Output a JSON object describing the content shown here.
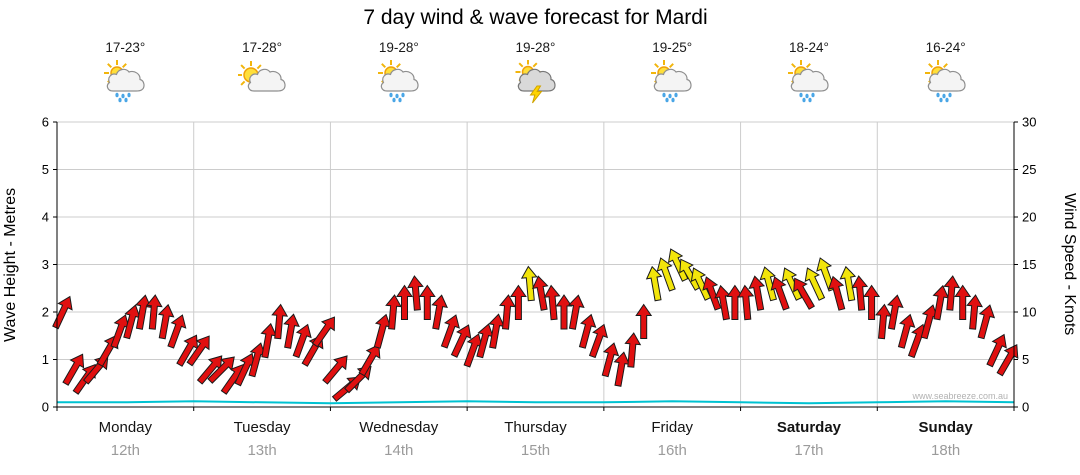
{
  "title": "7 day wind & wave forecast for Mardi",
  "watermark": "www.seabreeze.com.au",
  "days": [
    {
      "name": "Monday",
      "date": "12th",
      "temp": "17-23°",
      "icon": "sun-cloud-rain",
      "bold": false
    },
    {
      "name": "Tuesday",
      "date": "13th",
      "temp": "17-28°",
      "icon": "sun-cloud",
      "bold": false
    },
    {
      "name": "Wednesday",
      "date": "14th",
      "temp": "19-28°",
      "icon": "sun-cloud-rain",
      "bold": false
    },
    {
      "name": "Thursday",
      "date": "15th",
      "temp": "19-28°",
      "icon": "storm",
      "bold": false
    },
    {
      "name": "Friday",
      "date": "16th",
      "temp": "19-25°",
      "icon": "sun-cloud-rain",
      "bold": false
    },
    {
      "name": "Saturday",
      "date": "17th",
      "temp": "18-24°",
      "icon": "sun-cloud-rain",
      "bold": true
    },
    {
      "name": "Sunday",
      "date": "18th",
      "temp": "16-24°",
      "icon": "sun-cloud-rain",
      "bold": true
    }
  ],
  "axes": {
    "left_label": "Wave Height - Metres",
    "right_label": "Wind Speed - Knots",
    "left_ticks": [
      0,
      1,
      2,
      3,
      4,
      5,
      6
    ],
    "right_ticks": [
      0,
      5,
      10,
      15,
      20,
      25,
      30
    ]
  },
  "chart_data": {
    "type": "wind-arrow-series",
    "x_categories": [
      "Monday 12th",
      "Tuesday 13th",
      "Wednesday 14th",
      "Thursday 15th",
      "Friday 16th",
      "Saturday 17th",
      "Sunday 18th"
    ],
    "points_per_day": 12,
    "ylim_wave_m": [
      0,
      6
    ],
    "ylim_wind_knots": [
      0,
      30
    ],
    "strong_threshold_knots": 13,
    "normal_color": "#e01010",
    "strong_color": "#f2e50b",
    "wave_line_color": "#00c2d1",
    "wind_knots": [
      10,
      4,
      3,
      4,
      6,
      8,
      9,
      10,
      10,
      9,
      8,
      6,
      6,
      4,
      4,
      3,
      4,
      5,
      7,
      9,
      8,
      7,
      6,
      8,
      4,
      2,
      3,
      5,
      8,
      10,
      11,
      12,
      11,
      10,
      8,
      7,
      6,
      7,
      8,
      10,
      11,
      13,
      12,
      11,
      10,
      10,
      8,
      7,
      5,
      4,
      6,
      9,
      13,
      14,
      15,
      14,
      13,
      12,
      11,
      11,
      11,
      12,
      13,
      12,
      13,
      12,
      13,
      14,
      12,
      13,
      12,
      11,
      9,
      10,
      8,
      7,
      9,
      11,
      12,
      11,
      10,
      9,
      6,
      5
    ],
    "wind_dir_deg": [
      25,
      30,
      35,
      40,
      30,
      20,
      15,
      10,
      5,
      10,
      20,
      30,
      35,
      40,
      45,
      35,
      25,
      15,
      10,
      5,
      10,
      20,
      30,
      35,
      40,
      50,
      45,
      30,
      15,
      5,
      0,
      -5,
      0,
      10,
      20,
      25,
      20,
      15,
      10,
      5,
      0,
      -5,
      -10,
      -5,
      0,
      10,
      15,
      20,
      15,
      10,
      5,
      0,
      -10,
      -20,
      -25,
      -30,
      -25,
      -20,
      -10,
      0,
      -5,
      -10,
      -15,
      -20,
      -25,
      -30,
      -25,
      -20,
      -15,
      -10,
      -5,
      0,
      5,
      10,
      15,
      20,
      15,
      10,
      5,
      0,
      5,
      15,
      25,
      30
    ],
    "wave_height_m": [
      0.1,
      0.1,
      0.12,
      0.1,
      0.08,
      0.1,
      0.12,
      0.1,
      0.1,
      0.12,
      0.1,
      0.08,
      0.1,
      0.12,
      0.1
    ]
  }
}
